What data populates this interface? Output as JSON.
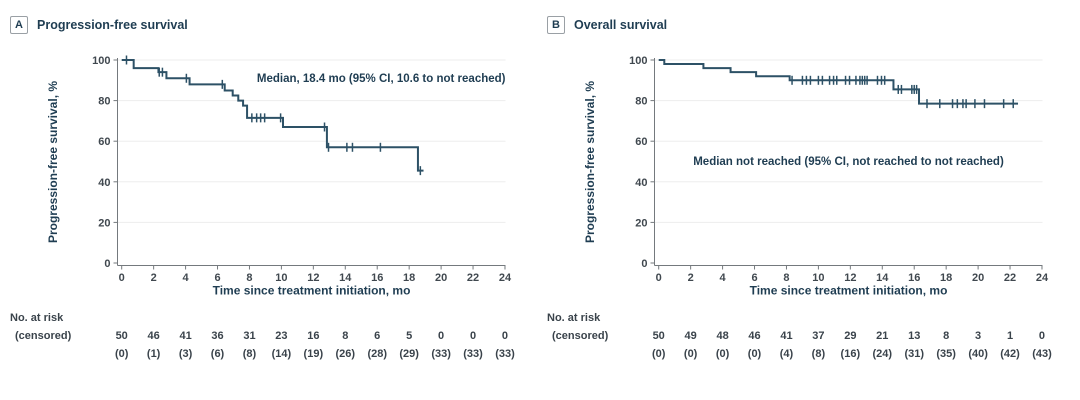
{
  "figure": {
    "background": "#ffffff",
    "risk_header_line1": "No. at risk",
    "risk_header_line2": "(censored)"
  },
  "colors": {
    "curve": "#2d5166",
    "title_text": "#1f3d52",
    "tick_text": "#40484f",
    "risk_text": "#3a434b",
    "axis_line": "#74797d",
    "grid_line": "#ededed",
    "badge_border": "#9aa0a5"
  },
  "chart_data": [
    {
      "type": "line",
      "subtype": "kaplan-meier-step",
      "panel_label": "A",
      "title": "Progression-free survival",
      "annotation": "Median, 18.4 mo (95% CI, 10.6 to not reached)",
      "annotation_align": "right",
      "xlabel": "Time since treatment initiation, mo",
      "ylabel": "Progression-free survival, %",
      "xlim": [
        0,
        24
      ],
      "ylim": [
        0,
        100
      ],
      "x_ticks": [
        0,
        2,
        4,
        6,
        8,
        10,
        12,
        14,
        16,
        18,
        20,
        22,
        24
      ],
      "y_ticks": [
        0,
        20,
        40,
        60,
        80,
        100
      ],
      "grid": true,
      "survival_steps": [
        [
          0,
          100
        ],
        [
          0.75,
          96
        ],
        [
          2.3,
          94
        ],
        [
          2.8,
          91
        ],
        [
          4.25,
          88
        ],
        [
          6.45,
          85
        ],
        [
          6.95,
          82.5
        ],
        [
          7.3,
          80
        ],
        [
          7.6,
          77.5
        ],
        [
          7.85,
          71.5
        ],
        [
          10.1,
          67
        ],
        [
          12.85,
          57
        ],
        [
          18.55,
          45.5
        ]
      ],
      "curve_end_t": 18.9,
      "censor_marks": [
        [
          0.3,
          100
        ],
        [
          2.35,
          94
        ],
        [
          2.55,
          94
        ],
        [
          4.05,
          91
        ],
        [
          6.3,
          88
        ],
        [
          8.15,
          71.5
        ],
        [
          8.45,
          71.5
        ],
        [
          8.7,
          71.5
        ],
        [
          8.95,
          71.5
        ],
        [
          9.95,
          71.5
        ],
        [
          12.7,
          67
        ],
        [
          12.95,
          57
        ],
        [
          14.1,
          57
        ],
        [
          14.45,
          57
        ],
        [
          16.2,
          57
        ],
        [
          18.7,
          45.5
        ]
      ],
      "risk_times": [
        0,
        2,
        4,
        6,
        8,
        10,
        12,
        14,
        16,
        18,
        20,
        22,
        24
      ],
      "at_risk": [
        50,
        46,
        41,
        36,
        31,
        23,
        16,
        8,
        6,
        5,
        0,
        0,
        0
      ],
      "censored_cumulative": [
        0,
        1,
        3,
        6,
        8,
        14,
        19,
        26,
        28,
        29,
        33,
        33,
        33
      ]
    },
    {
      "type": "line",
      "subtype": "kaplan-meier-step",
      "panel_label": "B",
      "title": "Overall survival",
      "annotation": "Median not reached (95% CI, not reached to not reached)",
      "annotation_align": "center",
      "xlabel": "Time since treatment initiation, mo",
      "ylabel": "Progression-free survival, %",
      "xlim": [
        0,
        24
      ],
      "ylim": [
        0,
        100
      ],
      "x_ticks": [
        0,
        2,
        4,
        6,
        8,
        10,
        12,
        14,
        16,
        18,
        20,
        22,
        24
      ],
      "y_ticks": [
        0,
        20,
        40,
        60,
        80,
        100
      ],
      "grid": true,
      "survival_steps": [
        [
          0,
          100
        ],
        [
          0.35,
          98
        ],
        [
          2.8,
          96
        ],
        [
          4.5,
          94
        ],
        [
          6.1,
          92
        ],
        [
          8.2,
          90
        ],
        [
          14.7,
          85.5
        ],
        [
          16.3,
          78.5
        ]
      ],
      "curve_end_t": 22.5,
      "censor_marks": [
        [
          8.35,
          90
        ],
        [
          9.0,
          90
        ],
        [
          9.25,
          90
        ],
        [
          9.5,
          90
        ],
        [
          10.0,
          90
        ],
        [
          10.25,
          90
        ],
        [
          10.7,
          90
        ],
        [
          10.95,
          90
        ],
        [
          11.15,
          90
        ],
        [
          11.7,
          90
        ],
        [
          11.95,
          90
        ],
        [
          12.35,
          90
        ],
        [
          12.6,
          90
        ],
        [
          12.75,
          90
        ],
        [
          12.9,
          90
        ],
        [
          13.05,
          90
        ],
        [
          13.7,
          90
        ],
        [
          13.95,
          90
        ],
        [
          14.15,
          90
        ],
        [
          15.0,
          85.5
        ],
        [
          15.2,
          85.5
        ],
        [
          15.85,
          85.5
        ],
        [
          16.0,
          85.5
        ],
        [
          16.15,
          85.5
        ],
        [
          16.8,
          78.5
        ],
        [
          17.6,
          78.5
        ],
        [
          18.4,
          78.5
        ],
        [
          18.7,
          78.5
        ],
        [
          19.05,
          78.5
        ],
        [
          19.25,
          78.5
        ],
        [
          19.8,
          78.5
        ],
        [
          20.4,
          78.5
        ],
        [
          21.6,
          78.5
        ],
        [
          22.2,
          78.5
        ]
      ],
      "risk_times": [
        0,
        2,
        4,
        6,
        8,
        10,
        12,
        14,
        16,
        18,
        20,
        22,
        24
      ],
      "at_risk": [
        50,
        49,
        48,
        46,
        41,
        37,
        29,
        21,
        13,
        8,
        3,
        1,
        0
      ],
      "censored_cumulative": [
        0,
        0,
        0,
        0,
        4,
        8,
        16,
        24,
        31,
        35,
        40,
        42,
        43
      ]
    }
  ]
}
